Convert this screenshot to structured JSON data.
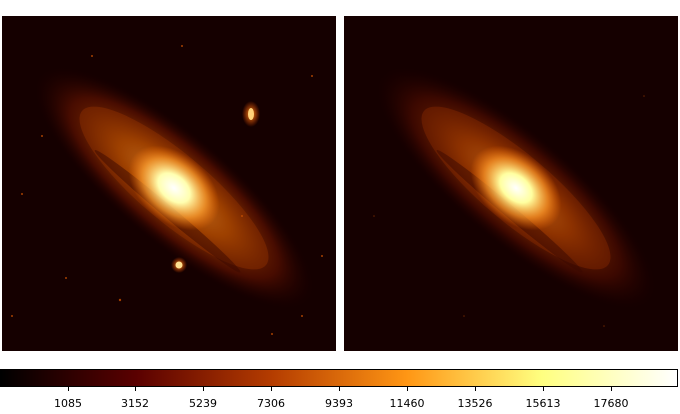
{
  "panels": [
    {
      "id": "left",
      "stars_visible": true
    },
    {
      "id": "right",
      "stars_visible": false
    }
  ],
  "colormap": {
    "name": "afmhot",
    "stops": [
      "#000000",
      "#5a0000",
      "#b43c00",
      "#ff9614",
      "#ffff80",
      "#ffffff"
    ],
    "tick_labels": [
      "1085",
      "3152",
      "5239",
      "7306",
      "9393",
      "11460",
      "13526",
      "15613",
      "17680"
    ]
  }
}
